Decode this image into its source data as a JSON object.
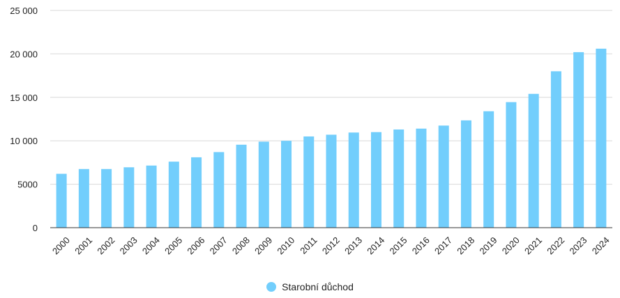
{
  "chart_data": {
    "type": "bar",
    "categories": [
      "2000",
      "2001",
      "2002",
      "2003",
      "2004",
      "2005",
      "2006",
      "2007",
      "2008",
      "2009",
      "2010",
      "2011",
      "2012",
      "2013",
      "2014",
      "2015",
      "2016",
      "2017",
      "2018",
      "2019",
      "2020",
      "2021",
      "2022",
      "2023",
      "2024"
    ],
    "series": [
      {
        "name": "Starobní důchod",
        "values": [
          6200,
          6750,
          6750,
          6950,
          7150,
          7600,
          8100,
          8700,
          9550,
          9900,
          10000,
          10500,
          10700,
          10950,
          11000,
          11300,
          11400,
          11750,
          12350,
          13400,
          14450,
          15400,
          18000,
          20200,
          20600
        ]
      }
    ],
    "yticks": [
      "0",
      "5000",
      "10 000",
      "15 000",
      "20 000",
      "25 000"
    ],
    "ylim": [
      0,
      25000
    ],
    "grid": true,
    "legend_position": "bottom",
    "bar_color": "#72cefc",
    "grid_color": "#d9d9d9",
    "axis_color": "#333333"
  }
}
